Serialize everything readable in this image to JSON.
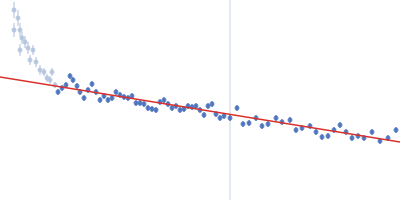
{
  "chart_data": {
    "type": "scatter",
    "xlim": [
      0,
      400
    ],
    "ylim": [
      0,
      200
    ],
    "tick_labels": false,
    "grid": false,
    "vlines": [
      230
    ],
    "series": [
      {
        "type": "scatter",
        "color": "#aebfdb",
        "marker": "circle",
        "x": [
          14,
          18,
          14,
          20,
          20,
          22,
          25,
          28,
          30,
          33,
          36,
          40,
          44,
          47,
          50,
          52,
          55
        ],
        "values": [
          190,
          182,
          170,
          170,
          150,
          162,
          158,
          152,
          140,
          150,
          138,
          130,
          128,
          122,
          120,
          128,
          115
        ],
        "errors": [
          8,
          8,
          7,
          7,
          6,
          6,
          6,
          6,
          5,
          5,
          5,
          5,
          4,
          4,
          4,
          4,
          3
        ]
      },
      {
        "type": "scatter",
        "color": "#3a67b8",
        "marker": "circle",
        "x": [
          58,
          62,
          66,
          70,
          73,
          77,
          80,
          84,
          88,
          92,
          96,
          100,
          104,
          108,
          112,
          116,
          120,
          124,
          128,
          132,
          136,
          140,
          144,
          148,
          152,
          156,
          160,
          164,
          168,
          172,
          176,
          180,
          184,
          188,
          192,
          196,
          200,
          204,
          208,
          212,
          216,
          220,
          224,
          230,
          237,
          243,
          249,
          256,
          262,
          268,
          276,
          282,
          290,
          296,
          302,
          310,
          316,
          322,
          328,
          334,
          340,
          346,
          352,
          358,
          364,
          372,
          380,
          388,
          396
        ],
        "values": [
          108,
          112,
          115,
          124,
          120,
          114,
          108,
          102,
          110,
          116,
          108,
          100,
          104,
          100,
          102,
          108,
          105,
          103,
          102,
          104,
          97,
          97,
          96,
          92,
          91,
          90,
          98,
          100,
          96,
          92,
          94,
          90,
          91,
          94,
          93,
          94,
          90,
          85,
          94,
          96,
          86,
          82,
          84,
          82,
          92,
          76,
          77,
          82,
          74,
          76,
          82,
          78,
          80,
          70,
          72,
          74,
          68,
          63,
          64,
          70,
          75,
          68,
          62,
          64,
          62,
          68,
          59,
          62,
          70
        ],
        "errors": [
          3,
          3,
          3,
          3,
          3,
          3,
          3,
          3,
          3,
          3,
          3,
          3,
          3,
          3,
          3,
          3,
          3,
          3,
          3,
          3,
          3,
          3,
          3,
          3,
          3,
          3,
          3,
          3,
          3,
          3,
          3,
          3,
          3,
          3,
          3,
          3,
          3,
          3,
          3,
          3,
          3,
          3,
          3,
          3,
          3,
          3,
          3,
          3,
          3,
          3,
          3,
          3,
          3,
          3,
          3,
          3,
          3,
          3,
          3,
          3,
          3,
          3,
          3,
          3,
          3,
          3,
          3,
          3,
          3
        ]
      },
      {
        "type": "line",
        "color": "#d9302c",
        "line_style": "solid",
        "x": [
          0,
          400
        ],
        "values": [
          123,
          58
        ]
      }
    ]
  }
}
